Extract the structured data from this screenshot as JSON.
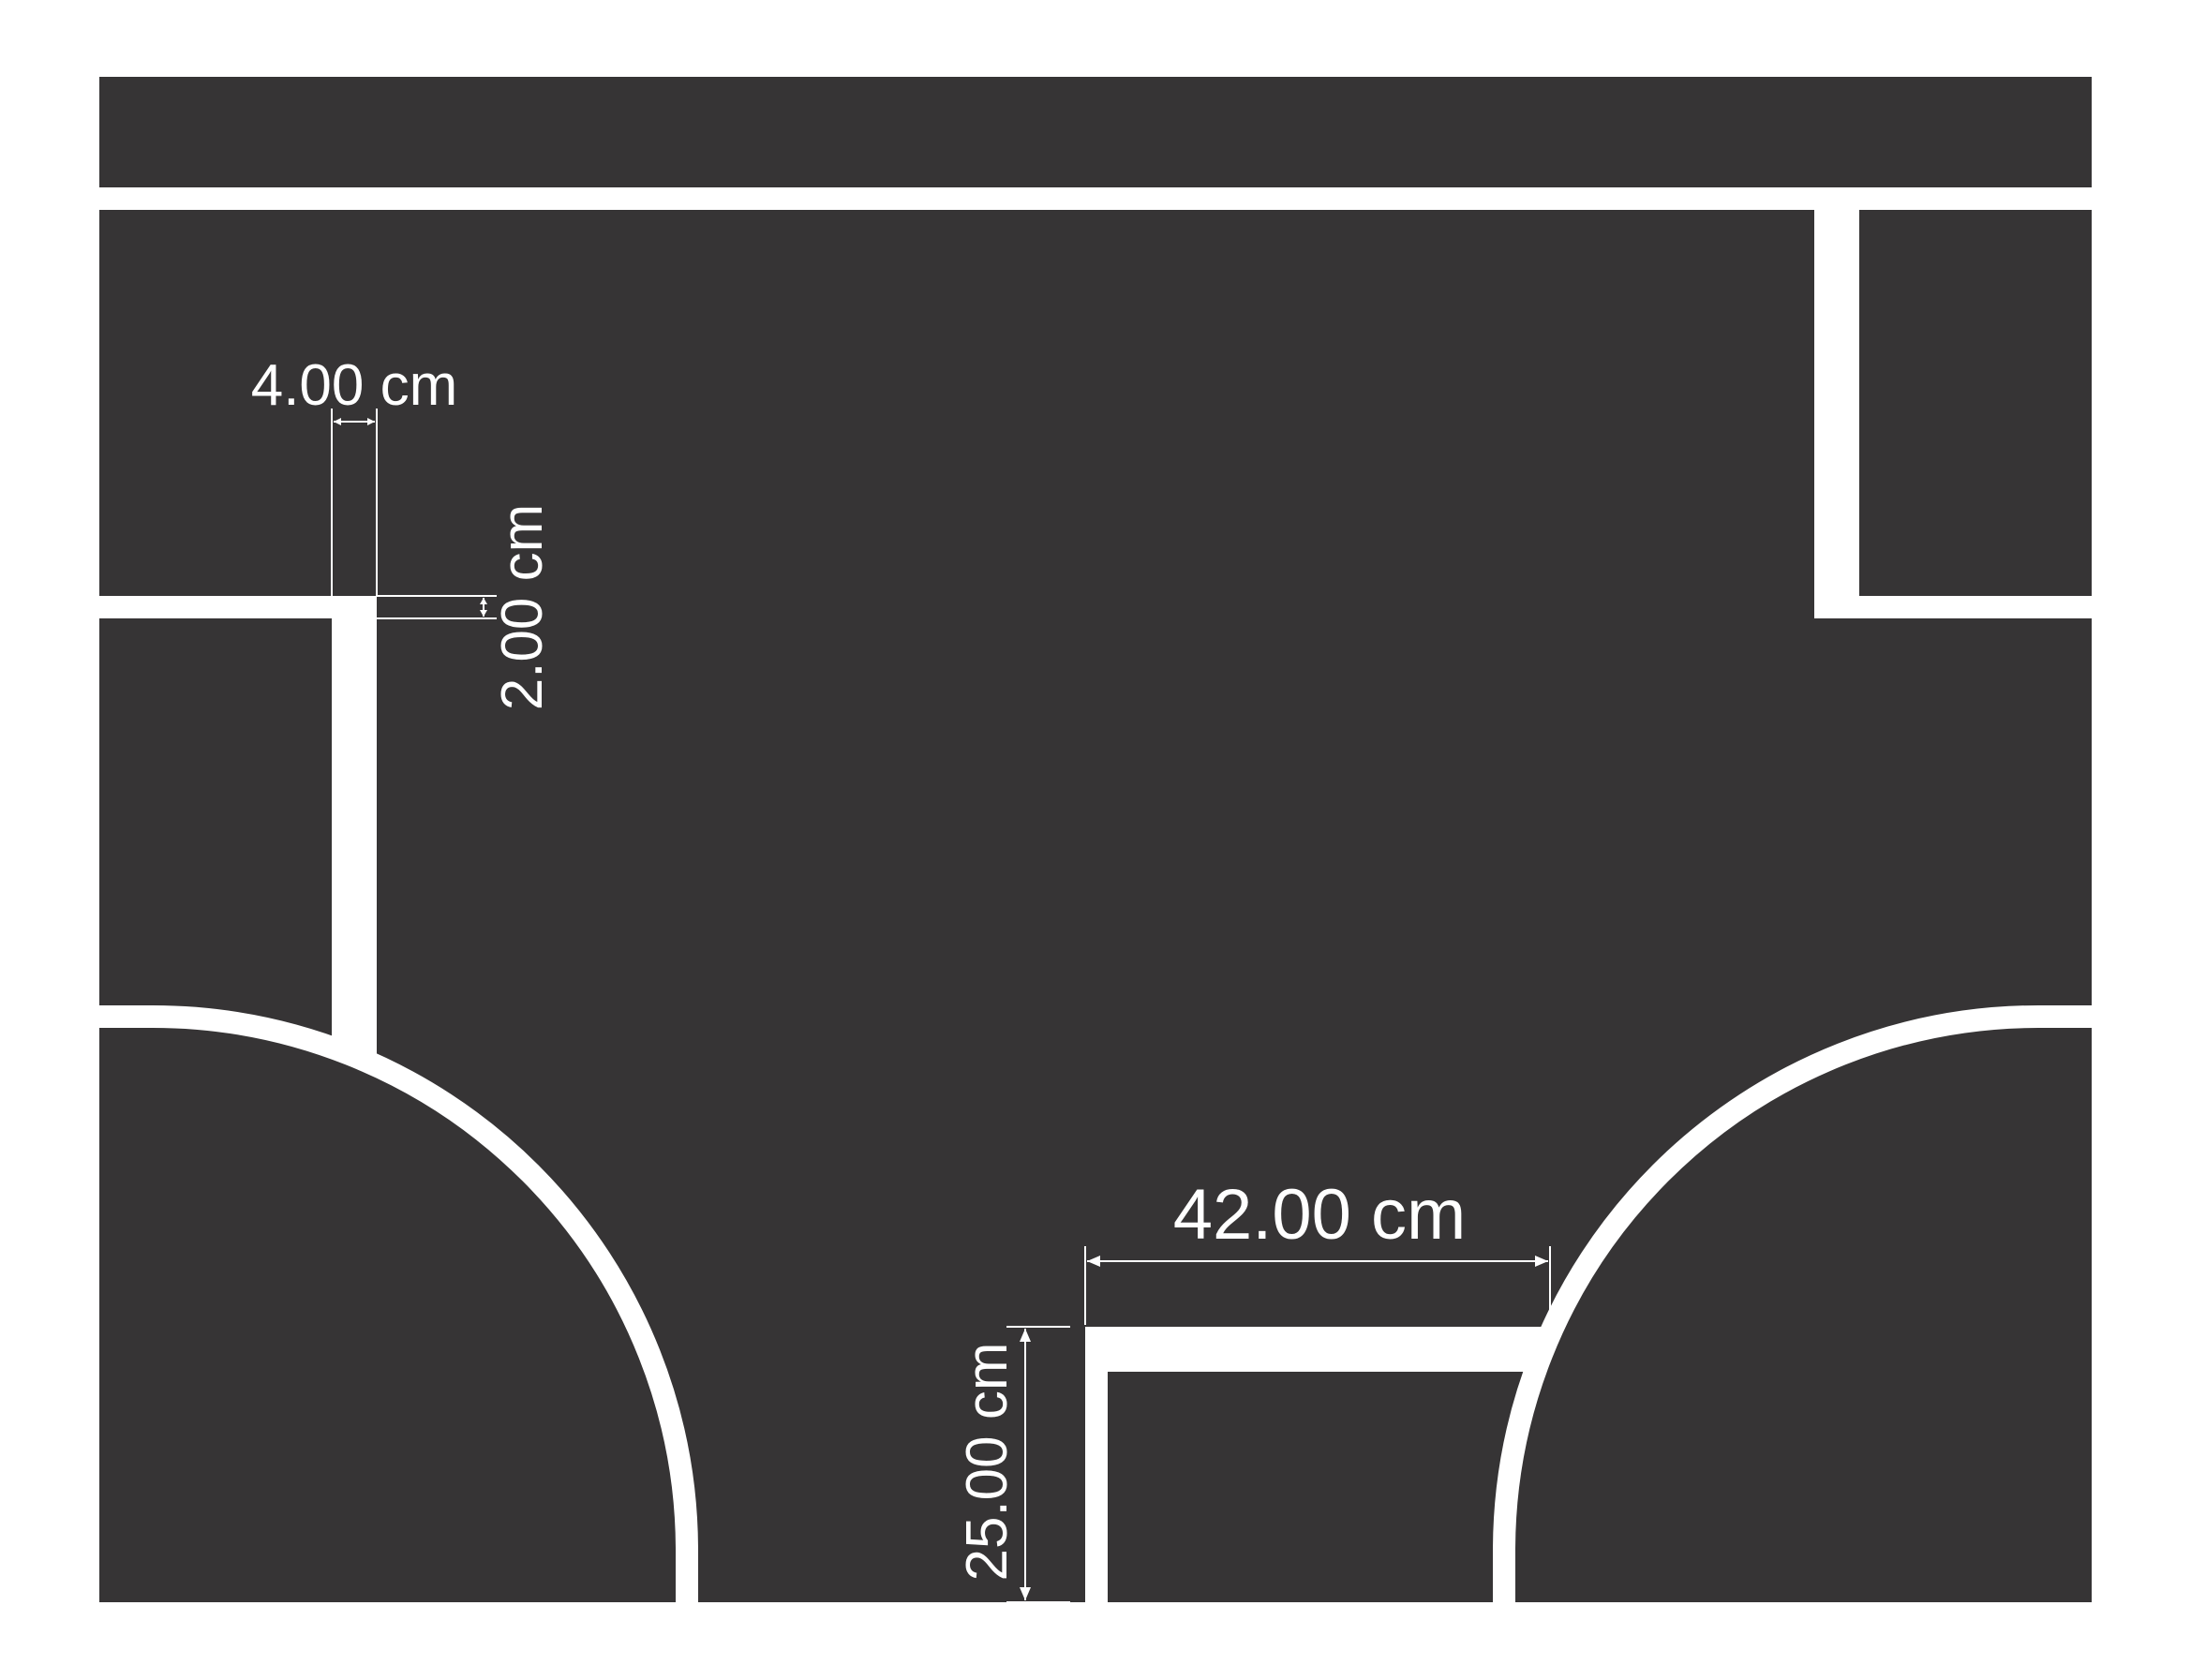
{
  "colors": {
    "background": "#ffffff",
    "board": "#363435",
    "line": "#ffffff",
    "dimension": "#ffffff"
  },
  "dimensions": {
    "line_width": "4.00 cm",
    "line_thickness": "2.00 cm",
    "box_width": "42.00 cm",
    "box_height": "25.00 cm"
  }
}
